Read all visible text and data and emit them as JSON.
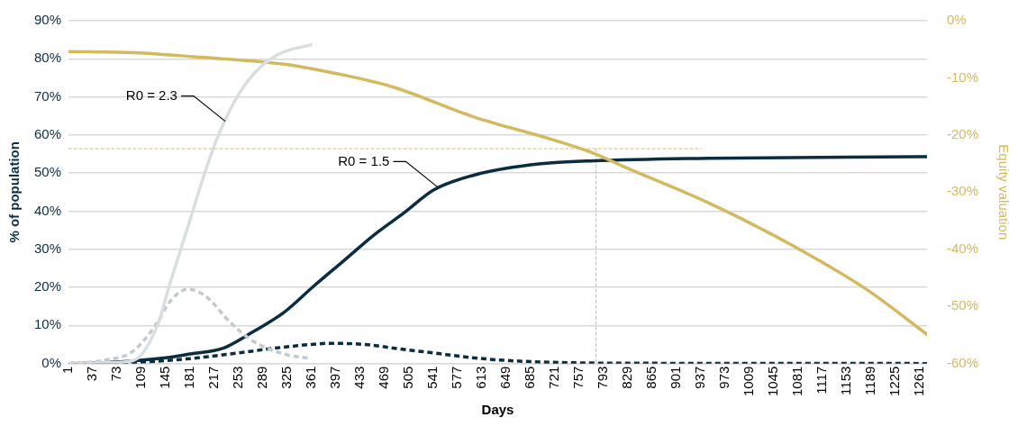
{
  "chart_data": {
    "type": "line",
    "xlabel": "Days",
    "ylabel": "% of population",
    "y2label": "Equity valuation",
    "xlim": [
      1,
      1272
    ],
    "xticks": [
      1,
      37,
      73,
      109,
      145,
      181,
      217,
      253,
      289,
      325,
      361,
      397,
      433,
      469,
      505,
      541,
      577,
      613,
      649,
      685,
      721,
      757,
      793,
      829,
      865,
      901,
      937,
      973,
      1009,
      1045,
      1081,
      1117,
      1153,
      1189,
      1225,
      1261
    ],
    "ylim": [
      0,
      90
    ],
    "yticks": [
      {
        "value": 0,
        "label": "0%"
      },
      {
        "value": 10,
        "label": "10%"
      },
      {
        "value": 20,
        "label": "20%"
      },
      {
        "value": 30,
        "label": "30%"
      },
      {
        "value": 40,
        "label": "40%"
      },
      {
        "value": 50,
        "label": "50%"
      },
      {
        "value": 60,
        "label": "60%"
      },
      {
        "value": 70,
        "label": "70%"
      },
      {
        "value": 80,
        "label": "80%"
      },
      {
        "value": 90,
        "label": "90%"
      }
    ],
    "y2lim": [
      -60,
      0
    ],
    "y2ticks": [
      {
        "value": 0,
        "label": "0%"
      },
      {
        "value": -10,
        "label": "-10%"
      },
      {
        "value": -20,
        "label": "-20%"
      },
      {
        "value": -30,
        "label": "-30%"
      },
      {
        "value": -40,
        "label": "-40%"
      },
      {
        "value": -50,
        "label": "-50%"
      },
      {
        "value": -60,
        "label": "-60%"
      }
    ],
    "grid": "y",
    "legend": false,
    "marker": "none",
    "series": [
      {
        "color": "#d9dee1",
        "line_style": "solid",
        "x": [
          1,
          60,
          97,
          133,
          150,
          168,
          186,
          204,
          221,
          248,
          275,
          311,
          360
        ],
        "values": [
          0,
          0.2,
          0.8,
          10.1,
          20.3,
          30.4,
          40.6,
          50.7,
          59.1,
          69.2,
          76,
          81.1,
          83.7
        ]
      },
      {
        "color": "#c2cacf",
        "line_style": "dashed",
        "x": [
          1,
          53,
          97,
          133,
          150,
          177,
          204,
          240,
          275,
          320,
          360
        ],
        "values": [
          0,
          0.8,
          3.3,
          10.9,
          16,
          19.5,
          17.7,
          10.9,
          5.8,
          2.5,
          1.3
        ]
      },
      {
        "color": "#d4b95e",
        "line_style": "solid",
        "axis": "y2",
        "x": [
          1,
          100,
          186,
          320,
          400,
          484,
          600,
          717,
          774,
          832,
          949,
          1066,
          1182,
          1272
        ],
        "values": [
          -5.4,
          -5.6,
          -6.3,
          -7.6,
          -9.3,
          -11.7,
          -16.8,
          -20.8,
          -23,
          -26,
          -31.9,
          -38.9,
          -47,
          -54.9
        ]
      },
      {
        "color": "#0a2d3f",
        "line_style": "solid",
        "x": [
          1,
          73,
          145,
          181,
          231,
          275,
          320,
          364,
          408,
          453,
          498,
          542,
          600,
          658,
          717,
          774,
          949,
          1272
        ],
        "values": [
          0,
          0.4,
          1.5,
          2.5,
          4.1,
          8.4,
          13.4,
          20.3,
          26.9,
          33.7,
          39.6,
          45.6,
          49.4,
          51.5,
          52.7,
          53.2,
          53.9,
          54.3
        ]
      },
      {
        "color": "#0a2d3f",
        "line_style": "dashed",
        "x": [
          1,
          109,
          181,
          253,
          325,
          391,
          440,
          484,
          540,
          600,
          660,
          720,
          800,
          1272
        ],
        "values": [
          0,
          0.4,
          1.3,
          2.8,
          4.4,
          5.3,
          5.0,
          4.0,
          2.8,
          1.5,
          0.7,
          0.3,
          0.1,
          0
        ]
      },
      {
        "color": "#d4b95e",
        "line_style": "dotted",
        "x": [
          1,
          938
        ],
        "values": [
          56.4,
          56.4
        ]
      },
      {
        "color": "#d4b95e",
        "line_style": "dotted",
        "x": [
          782,
          782
        ],
        "values": [
          56.4,
          0
        ]
      }
    ],
    "annotations": [
      {
        "text": "R0 = 2.3",
        "x": 233,
        "y": 63.6
      },
      {
        "text": "R0 = 1.5",
        "x": 547,
        "y": 46.4
      }
    ]
  }
}
